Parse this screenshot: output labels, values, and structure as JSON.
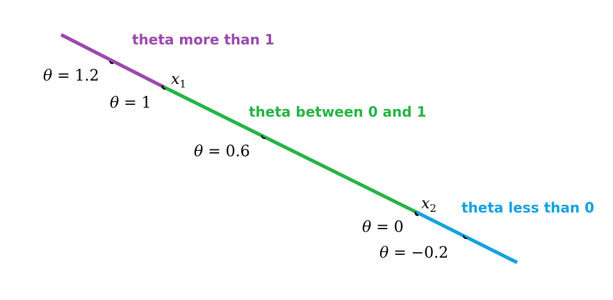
{
  "colors": {
    "theta_more": "#9C48AE",
    "theta_between": "#25B346",
    "theta_less": "#12A1E0",
    "text": "#000000"
  },
  "regions": {
    "more": "theta more than 1",
    "between": "theta between 0 and 1",
    "less": "theta less than 0"
  },
  "points": {
    "x1": {
      "symbol": "x",
      "subscript": "1"
    },
    "x2": {
      "symbol": "x",
      "subscript": "2"
    }
  },
  "ticks": {
    "t12": {
      "symbol": "θ",
      "rest": " = 1.2"
    },
    "t1": {
      "symbol": "θ",
      "rest": " = 1"
    },
    "t06": {
      "symbol": "θ",
      "rest": " = 0.6"
    },
    "t0": {
      "symbol": "θ",
      "rest": " = 0"
    },
    "tm02": {
      "symbol": "θ",
      "rest": " = −0.2"
    }
  }
}
